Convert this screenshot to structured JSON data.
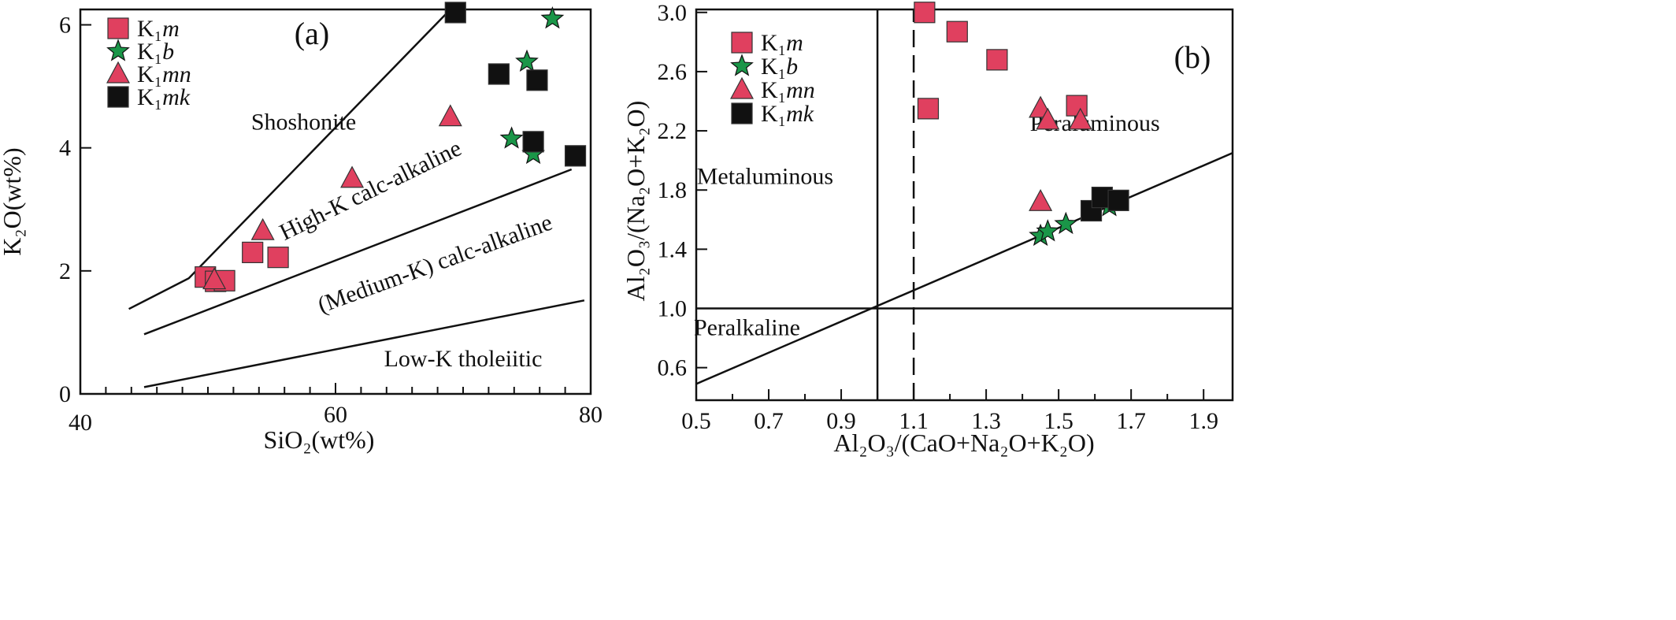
{
  "colors": {
    "K1m": "#e0405f",
    "K1b": "#1a9648",
    "K1mn": "#e0405f",
    "K1mk": "#111111",
    "line": "#111111"
  },
  "chart_data": [
    {
      "type": "scatter",
      "panel_label": "(a)",
      "xlabel": "SiO₂(wt%)",
      "ylabel": "K₂O(wt%)",
      "xlim": [
        40,
        80
      ],
      "ylim": [
        0,
        6.25
      ],
      "xticks": [
        40,
        60,
        80
      ],
      "yticks": [
        0,
        2,
        4,
        6
      ],
      "grid": false,
      "legend_position": "top-left",
      "legend": [
        {
          "series": "K1m",
          "label": "K₁",
          "italic": "m",
          "marker": "square"
        },
        {
          "series": "K1b",
          "label": "K₁",
          "italic": "b",
          "marker": "star"
        },
        {
          "series": "K1mn",
          "label": "K₁",
          "italic": "mn",
          "marker": "triangle"
        },
        {
          "series": "K1mk",
          "label": "K₁",
          "italic": "mk",
          "marker": "square"
        }
      ],
      "series": [
        {
          "key": "K1m",
          "marker": "square",
          "points": [
            [
              49.8,
              1.9
            ],
            [
              50.6,
              1.83
            ],
            [
              51.3,
              1.84
            ],
            [
              53.5,
              2.3
            ],
            [
              55.5,
              2.22
            ]
          ]
        },
        {
          "key": "K1b",
          "marker": "star",
          "points": [
            [
              75.0,
              5.4
            ],
            [
              77.0,
              6.1
            ],
            [
              73.8,
              4.15
            ],
            [
              75.5,
              3.9
            ]
          ]
        },
        {
          "key": "K1mn",
          "marker": "triangle",
          "points": [
            [
              50.5,
              1.85
            ],
            [
              54.3,
              2.65
            ],
            [
              61.3,
              3.5
            ],
            [
              69.0,
              4.5
            ]
          ]
        },
        {
          "key": "K1mk",
          "marker": "square",
          "points": [
            [
              69.4,
              6.2
            ],
            [
              72.8,
              5.2
            ],
            [
              75.8,
              5.1
            ],
            [
              75.5,
              4.1
            ],
            [
              78.8,
              3.87
            ]
          ]
        }
      ],
      "boundaries": [
        {
          "points": [
            [
              43.8,
              1.38
            ],
            [
              48.5,
              1.88
            ],
            [
              69.0,
              6.25
            ]
          ]
        },
        {
          "points": [
            [
              45.0,
              0.97
            ],
            [
              78.5,
              3.65
            ]
          ]
        },
        {
          "points": [
            [
              45.0,
              0.11
            ],
            [
              79.5,
              1.52
            ]
          ]
        }
      ],
      "region_labels": [
        {
          "text": "Shoshonite",
          "x": 57.5,
          "y": 4.3,
          "rotate": 0
        },
        {
          "text": "High-K calc-alkaline",
          "x": 63.0,
          "y": 3.2,
          "rotate": -26
        },
        {
          "text": "(Medium-K) calc-alkaline",
          "x": 68.0,
          "y": 2.0,
          "rotate": -20
        },
        {
          "text": "Low-K tholeiitic",
          "x": 70.0,
          "y": 0.45,
          "rotate": 0
        }
      ]
    },
    {
      "type": "scatter",
      "panel_label": "(b)",
      "xlabel": "Al₂O₃/(CaO+Na₂O+K₂O)",
      "ylabel": "Al₂O₃/(Na₂O+K₂O)",
      "xlim": [
        0.5,
        1.98
      ],
      "ylim": [
        0.38,
        3.02
      ],
      "xticks": [
        0.5,
        0.7,
        0.9,
        1.1,
        1.3,
        1.5,
        1.7,
        1.9
      ],
      "yticks": [
        0.6,
        1.0,
        1.4,
        1.8,
        2.2,
        2.6,
        3.0
      ],
      "grid": false,
      "legend_position": "top-left",
      "legend": [
        {
          "series": "K1m",
          "label": "K₁",
          "italic": "m",
          "marker": "square"
        },
        {
          "series": "K1b",
          "label": "K₁",
          "italic": "b",
          "marker": "star"
        },
        {
          "series": "K1mn",
          "label": "K₁",
          "italic": "mn",
          "marker": "triangle"
        },
        {
          "series": "K1mk",
          "label": "K₁",
          "italic": "mk",
          "marker": "square"
        }
      ],
      "series": [
        {
          "key": "K1m",
          "marker": "square",
          "points": [
            [
              1.13,
              3.0
            ],
            [
              1.22,
              2.87
            ],
            [
              1.14,
              2.35
            ],
            [
              1.33,
              2.68
            ],
            [
              1.55,
              2.37
            ]
          ]
        },
        {
          "key": "K1b",
          "marker": "star",
          "points": [
            [
              1.45,
              1.49
            ],
            [
              1.47,
              1.52
            ],
            [
              1.52,
              1.57
            ],
            [
              1.64,
              1.69
            ]
          ]
        },
        {
          "key": "K1mn",
          "marker": "triangle",
          "points": [
            [
              1.45,
              2.35
            ],
            [
              1.47,
              2.27
            ],
            [
              1.56,
              2.27
            ],
            [
              1.45,
              1.72
            ]
          ]
        },
        {
          "key": "K1mk",
          "marker": "square",
          "points": [
            [
              1.59,
              1.66
            ],
            [
              1.62,
              1.75
            ],
            [
              1.665,
              1.73
            ]
          ]
        }
      ],
      "boundaries": [
        {
          "style": "solid",
          "points": [
            [
              1.0,
              0.38
            ],
            [
              1.0,
              3.02
            ]
          ]
        },
        {
          "style": "dashed",
          "points": [
            [
              1.1,
              0.38
            ],
            [
              1.1,
              3.02
            ]
          ]
        },
        {
          "style": "solid",
          "points": [
            [
              0.5,
              1.0
            ],
            [
              1.98,
              1.0
            ]
          ]
        },
        {
          "style": "solid",
          "points": [
            [
              0.5,
              0.49
            ],
            [
              1.98,
              2.05
            ]
          ]
        }
      ],
      "region_labels": [
        {
          "text": "Metaluminous",
          "x": 0.69,
          "y": 1.84,
          "rotate": 0
        },
        {
          "text": "Peraluminous",
          "x": 1.6,
          "y": 2.2,
          "rotate": 0
        },
        {
          "text": "Peralkaline",
          "x": 0.64,
          "y": 0.82,
          "rotate": 0
        }
      ]
    }
  ]
}
